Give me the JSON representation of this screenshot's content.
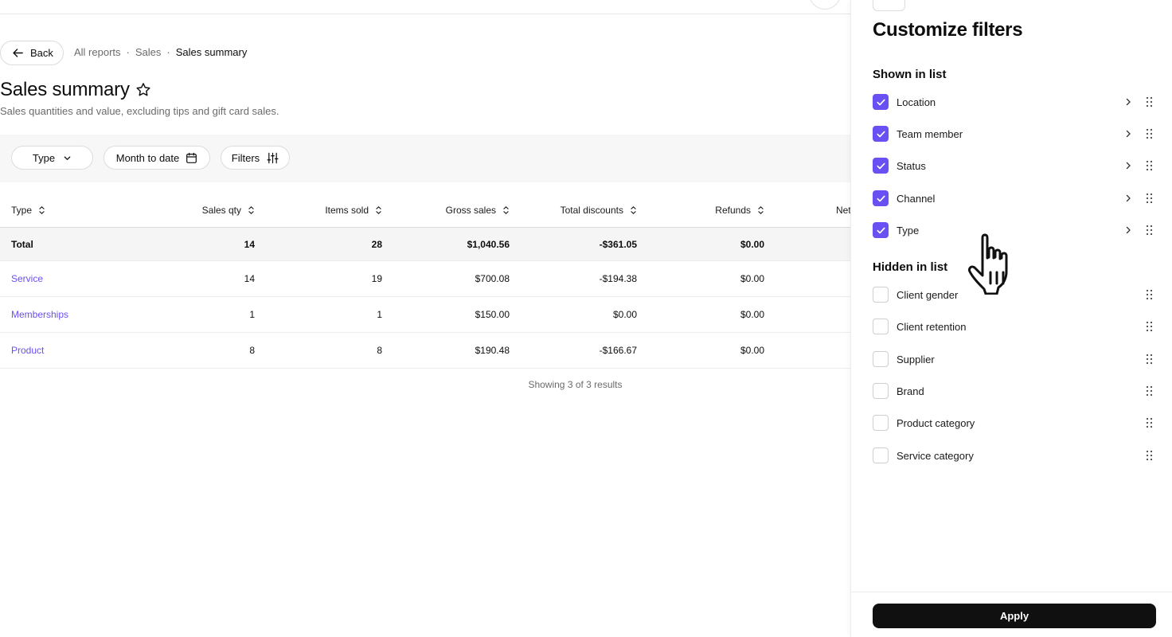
{
  "back_label": "Back",
  "breadcrumb": [
    "All reports",
    "Sales",
    "Sales summary"
  ],
  "breadcrumb_sep": "·",
  "page": {
    "title": "Sales summary",
    "subtitle": "Sales quantities and value, excluding tips and gift card sales."
  },
  "toolbar": {
    "type_label": "Type",
    "date_label": "Month to date",
    "filters_label": "Filters"
  },
  "table": {
    "headers": [
      "Type",
      "Sales qty",
      "Items sold",
      "Gross sales",
      "Total discounts",
      "Refunds",
      "Net"
    ],
    "total": {
      "type": "Total",
      "sales_qty": "14",
      "items_sold": "28",
      "gross_sales": "$1,040.56",
      "total_discounts": "-$361.05",
      "refunds": "$0.00"
    },
    "rows": [
      {
        "type": "Service",
        "sales_qty": "14",
        "items_sold": "19",
        "gross_sales": "$700.08",
        "total_discounts": "-$194.38",
        "refunds": "$0.00"
      },
      {
        "type": "Memberships",
        "sales_qty": "1",
        "items_sold": "1",
        "gross_sales": "$150.00",
        "total_discounts": "$0.00",
        "refunds": "$0.00"
      },
      {
        "type": "Product",
        "sales_qty": "8",
        "items_sold": "8",
        "gross_sales": "$190.48",
        "total_discounts": "-$166.67",
        "refunds": "$0.00"
      }
    ],
    "results_info": "Showing 3 of 3 results"
  },
  "panel": {
    "title": "Customize filters",
    "shown_title": "Shown in list",
    "hidden_title": "Hidden in list",
    "shown": [
      "Location",
      "Team member",
      "Status",
      "Channel",
      "Type"
    ],
    "hidden": [
      "Client gender",
      "Client retention",
      "Supplier",
      "Brand",
      "Product category",
      "Service category"
    ],
    "apply_label": "Apply"
  },
  "colors": {
    "accent": "#6950f3",
    "link": "#6950f3",
    "apply_bg": "#101010",
    "muted_text": "#6b6b6b"
  },
  "icons": {
    "back": "arrow-left-icon",
    "star": "star-outline-icon",
    "type_dropdown": "chevron-down-icon",
    "date": "calendar-icon",
    "filters": "sliders-icon",
    "sort": "sort-updown-icon",
    "check": "check-icon",
    "chevron": "chevron-right-icon",
    "drag": "drag-handle-icon",
    "cursor": "hand-pointer-icon"
  }
}
